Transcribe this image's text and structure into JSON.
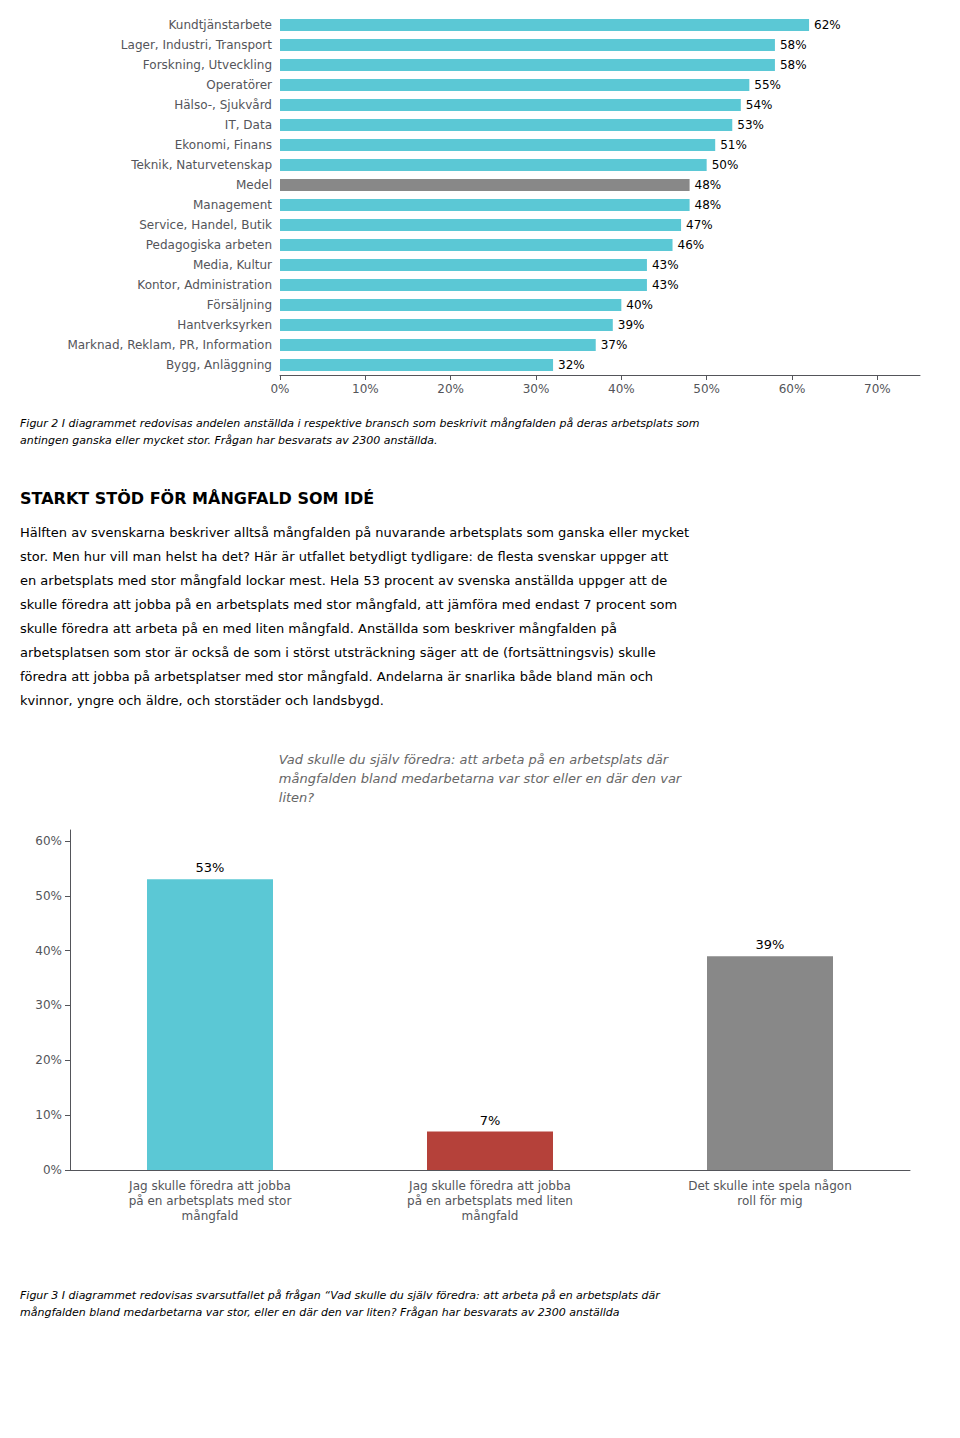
{
  "chart_data": [
    {
      "type": "bar",
      "orientation": "horizontal",
      "categories": [
        "Kundtjänstarbete",
        "Lager, Industri, Transport",
        "Forskning, Utveckling",
        "Operatörer",
        "Hälso-, Sjukvård",
        "IT, Data",
        "Ekonomi, Finans",
        "Teknik, Naturvetenskap",
        "Medel",
        "Management",
        "Service, Handel, Butik",
        "Pedagogiska arbeten",
        "Media, Kultur",
        "Kontor, Administration",
        "Försäljning",
        "Hantverksyrken",
        "Marknad, Reklam, PR, Information",
        "Bygg, Anläggning"
      ],
      "values": [
        62,
        58,
        58,
        55,
        54,
        53,
        51,
        50,
        48,
        48,
        47,
        46,
        43,
        43,
        40,
        39,
        37,
        32
      ],
      "value_labels": [
        "62%",
        "58%",
        "58%",
        "55%",
        "54%",
        "53%",
        "51%",
        "50%",
        "48%",
        "48%",
        "47%",
        "46%",
        "43%",
        "43%",
        "40%",
        "39%",
        "37%",
        "32%"
      ],
      "colors": [
        "#5bc8d5",
        "#5bc8d5",
        "#5bc8d5",
        "#5bc8d5",
        "#5bc8d5",
        "#5bc8d5",
        "#5bc8d5",
        "#5bc8d5",
        "#888888",
        "#5bc8d5",
        "#5bc8d5",
        "#5bc8d5",
        "#5bc8d5",
        "#5bc8d5",
        "#5bc8d5",
        "#5bc8d5",
        "#5bc8d5",
        "#5bc8d5"
      ],
      "xlim": [
        0,
        75
      ],
      "xticks": [
        {
          "value": 0,
          "label": "0%"
        },
        {
          "value": 10,
          "label": "10%"
        },
        {
          "value": 20,
          "label": "20%"
        },
        {
          "value": 30,
          "label": "30%"
        },
        {
          "value": 40,
          "label": "40%"
        },
        {
          "value": 50,
          "label": "50%"
        },
        {
          "value": 60,
          "label": "60%"
        },
        {
          "value": 70,
          "label": "70%"
        }
      ],
      "data_labels": true,
      "grid": false,
      "annotations": [
        "Figur 2 I diagrammet redovisas andelen anställda i respektive bransch som beskrivit mångfalden på deras arbetsplats som",
        "antingen ganska eller mycket stor. Frågan har besvarats av 2300 anställda.",
        "STARKT STÖD FÖR MÅNGFALD SOM IDÉ",
        "Hälften av svenskarna beskriver alltså mångfalden på nuvarande arbetsplats som ganska eller mycket",
        "stor. Men hur vill man helst ha det? Här är utfallet betydligt tydligare: de flesta svenskar uppger att",
        "en arbetsplats med stor mångfald lockar mest. Hela 53 procent av svenska anställda uppger att de",
        "skulle föredra att jobba på en arbetsplats med stor mångfald, att jämföra med endast 7 procent som",
        "skulle föredra att arbeta på en med liten mångfald. Anställda som beskriver mångfalden på",
        "arbetsplatsen som stor är också de som i störst utsträckning säger att de (fortsättningsvis) skulle",
        "föredra att jobba på arbetsplatser med stor mångfald. Andelarna är snarlika både bland män och",
        "kvinnor, yngre och äldre, och storstäder och landsbygd."
      ]
    },
    {
      "type": "bar",
      "title": "Vad skulle du själv föredra: att arbeta på en arbetsplats där\nmångfalden bland medarbetarna var stor eller en där den var\nliten?",
      "categories": [
        "Jag skulle föredra att jobba\npå en arbetsplats med stor\nmångfald",
        "Jag skulle föredra att jobba\npå en arbetsplats med liten\nmångfald",
        "Det skulle inte spela någon\nroll för mig"
      ],
      "values": [
        53,
        7,
        39
      ],
      "value_labels": [
        "53%",
        "7%",
        "39%"
      ],
      "colors": [
        "#5bc8d5",
        "#b5413a",
        "#888888"
      ],
      "ylim": [
        0,
        62
      ],
      "yticks": [
        {
          "value": 0,
          "label": "0%"
        },
        {
          "value": 10,
          "label": "10%"
        },
        {
          "value": 20,
          "label": "20%"
        },
        {
          "value": 30,
          "label": "30%"
        },
        {
          "value": 40,
          "label": "40%"
        },
        {
          "value": 50,
          "label": "50%"
        },
        {
          "value": 60,
          "label": "60%"
        }
      ],
      "data_labels": true,
      "grid": false,
      "annotations": [
        "Figur 3 I diagrammet redovisas svarsutfallet på frågan “Vad skulle du själv föredra: att arbeta på en arbetsplats där",
        "mångfalden bland medarbetarna var stor, eller en där den var liten? Frågan har besvarats av 2300 anställda"
      ]
    }
  ]
}
